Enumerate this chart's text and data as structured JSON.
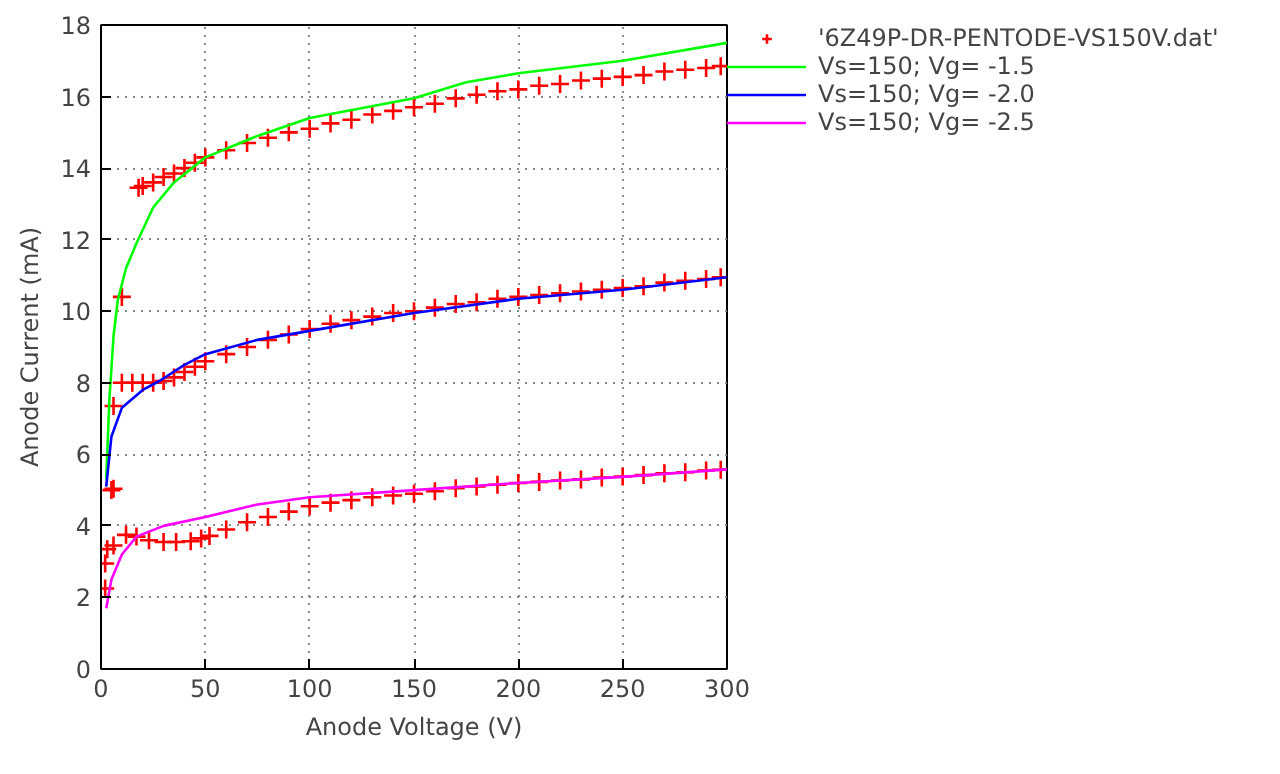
{
  "chart_data": {
    "type": "line",
    "xlabel": "Anode Voltage (V)",
    "ylabel": "Anode Current (mA)",
    "xlim": [
      0,
      300
    ],
    "ylim": [
      0,
      18
    ],
    "xticks": [
      0,
      50,
      100,
      150,
      200,
      250,
      300
    ],
    "yticks": [
      0,
      2,
      4,
      6,
      8,
      10,
      12,
      14,
      16,
      18
    ],
    "grid": true,
    "legend": "top right",
    "line_style": "solid",
    "series": [
      {
        "name": "'6Z49P-DR-PENTODE-VS150V.dat'",
        "type": "scatter",
        "marker": "cross",
        "color": "#ff0000",
        "x": [
          2,
          2,
          3,
          5,
          6,
          6,
          6,
          10,
          10,
          15,
          20,
          25,
          30,
          35,
          40,
          45,
          50,
          60,
          70,
          80,
          90,
          100,
          110,
          120,
          130,
          140,
          150,
          160,
          170,
          180,
          190,
          200,
          210,
          220,
          230,
          240,
          250,
          260,
          270,
          280,
          290,
          297,
          18,
          20,
          25,
          30,
          35,
          40,
          45,
          50,
          60,
          70,
          80,
          90,
          100,
          110,
          120,
          130,
          140,
          150,
          160,
          170,
          180,
          190,
          200,
          210,
          220,
          230,
          240,
          250,
          260,
          270,
          280,
          290,
          297,
          12,
          17,
          23,
          30,
          36,
          43,
          48,
          52,
          60,
          70,
          80,
          90,
          100,
          110,
          120,
          130,
          140,
          150,
          160,
          170,
          180,
          190,
          200,
          210,
          220,
          230,
          240,
          250,
          260,
          270,
          280,
          290,
          297
        ],
        "values": [
          2.25,
          2.95,
          3.35,
          5.0,
          3.45,
          7.35,
          5.04,
          10.4,
          8.0,
          8.0,
          8.0,
          8.0,
          8.05,
          8.15,
          8.3,
          8.45,
          8.6,
          8.8,
          9.0,
          9.2,
          9.35,
          9.5,
          9.65,
          9.75,
          9.85,
          9.95,
          10.0,
          10.1,
          10.2,
          10.25,
          10.35,
          10.4,
          10.45,
          10.5,
          10.55,
          10.6,
          10.65,
          10.7,
          10.8,
          10.85,
          10.9,
          10.95,
          13.45,
          13.5,
          13.6,
          13.75,
          13.85,
          14.0,
          14.15,
          14.3,
          14.5,
          14.7,
          14.85,
          15.0,
          15.1,
          15.25,
          15.35,
          15.5,
          15.6,
          15.7,
          15.8,
          15.95,
          16.05,
          16.15,
          16.2,
          16.3,
          16.35,
          16.45,
          16.5,
          16.55,
          16.6,
          16.7,
          16.75,
          16.8,
          16.85,
          3.75,
          3.7,
          3.6,
          3.55,
          3.55,
          3.57,
          3.65,
          3.72,
          3.9,
          4.1,
          4.25,
          4.4,
          4.55,
          4.65,
          4.72,
          4.8,
          4.85,
          4.9,
          4.97,
          5.05,
          5.1,
          5.15,
          5.2,
          5.23,
          5.27,
          5.3,
          5.35,
          5.38,
          5.42,
          5.47,
          5.5,
          5.55,
          5.57
        ]
      },
      {
        "name": "Vs=150; Vg= -1.5",
        "type": "line",
        "color": "#00ff00",
        "x": [
          2.5,
          4,
          6,
          8,
          12,
          17,
          25,
          35,
          50,
          75,
          100,
          150,
          175,
          200,
          250,
          300
        ],
        "values": [
          5.3,
          7.5,
          9.3,
          10.3,
          11.2,
          11.9,
          12.9,
          13.6,
          14.3,
          14.9,
          15.4,
          15.95,
          16.4,
          16.65,
          17.0,
          17.5
        ]
      },
      {
        "name": "Vs=150; Vg= -2.0",
        "type": "line",
        "color": "#0000ff",
        "x": [
          2.5,
          5,
          10,
          20,
          28,
          40,
          50,
          75,
          100,
          150,
          200,
          250,
          300
        ],
        "values": [
          5.1,
          6.5,
          7.3,
          7.8,
          8.05,
          8.5,
          8.8,
          9.2,
          9.45,
          9.95,
          10.35,
          10.6,
          10.95
        ]
      },
      {
        "name": "Vs=150; Vg= -2.5",
        "type": "line",
        "color": "#ff00ff",
        "x": [
          2.5,
          5,
          10,
          17,
          30,
          50,
          75,
          100,
          150,
          200,
          250,
          300
        ],
        "values": [
          1.7,
          2.5,
          3.2,
          3.7,
          4.0,
          4.25,
          4.6,
          4.8,
          5.0,
          5.2,
          5.37,
          5.58
        ]
      }
    ]
  }
}
